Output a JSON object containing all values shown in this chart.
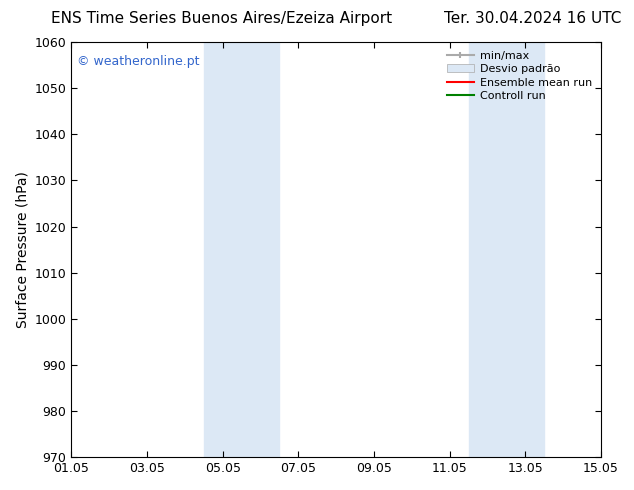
{
  "title_left": "ENS Time Series Buenos Aires/Ezeiza Airport",
  "title_right": "Ter. 30.04.2024 16 UTC",
  "ylabel": "Surface Pressure (hPa)",
  "ylim": [
    970,
    1060
  ],
  "yticks": [
    970,
    980,
    990,
    1000,
    1010,
    1020,
    1030,
    1040,
    1050,
    1060
  ],
  "xtick_labels": [
    "01.05",
    "03.05",
    "05.05",
    "07.05",
    "09.05",
    "11.05",
    "13.05",
    "15.05"
  ],
  "xmin": 0,
  "xmax": 14,
  "xtick_positions": [
    0,
    2,
    4,
    6,
    8,
    10,
    12,
    14
  ],
  "background_color": "#ffffff",
  "plot_bg_color": "#ffffff",
  "shaded_regions": [
    {
      "xmin": 3.5,
      "xmax": 5.5,
      "color": "#dce8f5"
    },
    {
      "xmin": 10.5,
      "xmax": 12.5,
      "color": "#dce8f5"
    }
  ],
  "watermark_text": "© weatheronline.pt",
  "watermark_color": "#3366cc",
  "title_fontsize": 11,
  "tick_fontsize": 9,
  "ylabel_fontsize": 10,
  "legend_fontsize": 8
}
